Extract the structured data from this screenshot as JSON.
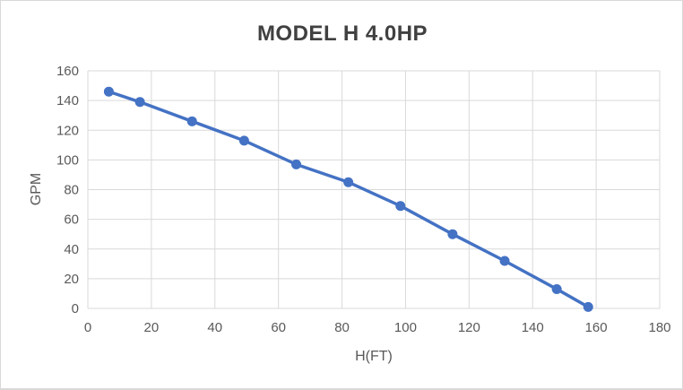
{
  "chart_data": {
    "type": "line",
    "title": "MODEL H 4.0HP",
    "xlabel": "H(FT)",
    "ylabel": "GPM",
    "series": [
      {
        "name": "MODEL H 4.0HP",
        "x": [
          6.6,
          16.4,
          32.8,
          49.2,
          65.6,
          82,
          98.4,
          114.8,
          131.2,
          147.6,
          157.5
        ],
        "y": [
          146,
          139,
          126,
          113,
          97,
          85,
          69,
          50,
          32,
          13,
          1
        ]
      }
    ],
    "xlim": [
      0,
      180
    ],
    "ylim": [
      0,
      160
    ],
    "x_ticks": [
      0,
      20,
      40,
      60,
      80,
      100,
      120,
      140,
      160,
      180
    ],
    "y_ticks": [
      0,
      20,
      40,
      60,
      80,
      100,
      120,
      140,
      160
    ],
    "grid": true,
    "legend_position": "none",
    "marker": "circle",
    "colors": {
      "line": "#4472C4",
      "marker": "#4472C4",
      "gridline": "#D9D9D9",
      "tick_text": "#595959",
      "axis_title_text": "#595959",
      "title_text": "#404040",
      "border": "#D9D9D9",
      "background": "#FFFFFF"
    }
  }
}
